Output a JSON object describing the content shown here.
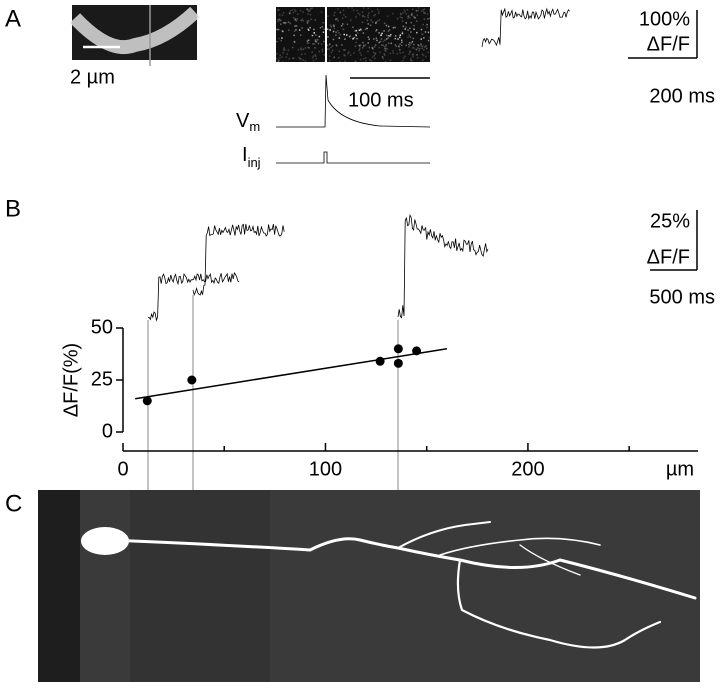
{
  "panels": {
    "a": {
      "label": "A",
      "image_scale": "2 µm",
      "time_scale": "100 ms",
      "vm": "V",
      "vm_sub": "m",
      "iinj": "I",
      "iinj_sub": "inj",
      "amp_scale": "100%",
      "amp_unit": "ΔF/F",
      "trace_time_scale": "200 ms"
    },
    "b": {
      "label": "B",
      "amp_scale": "25%",
      "amp_unit": "ΔF/F",
      "time_scale": "500 ms"
    },
    "c": {
      "label": "C"
    }
  },
  "chart_data": {
    "type": "scatter",
    "y_label": "ΔF/F(%)",
    "x_unit": "µm",
    "series": [
      {
        "color": "#000000",
        "x": [
          12,
          34,
          127,
          136,
          136,
          145
        ],
        "values": [
          15,
          25,
          34,
          40,
          33,
          39
        ]
      }
    ],
    "fit": {
      "x": [
        6,
        160
      ],
      "values": [
        16,
        40
      ]
    },
    "xlim": [
      0,
      284
    ],
    "ylim": [
      0,
      50
    ],
    "xticks": [
      0,
      100,
      200
    ],
    "xminor": [
      50,
      150,
      250
    ],
    "yticks": [
      0,
      25,
      50
    ]
  }
}
